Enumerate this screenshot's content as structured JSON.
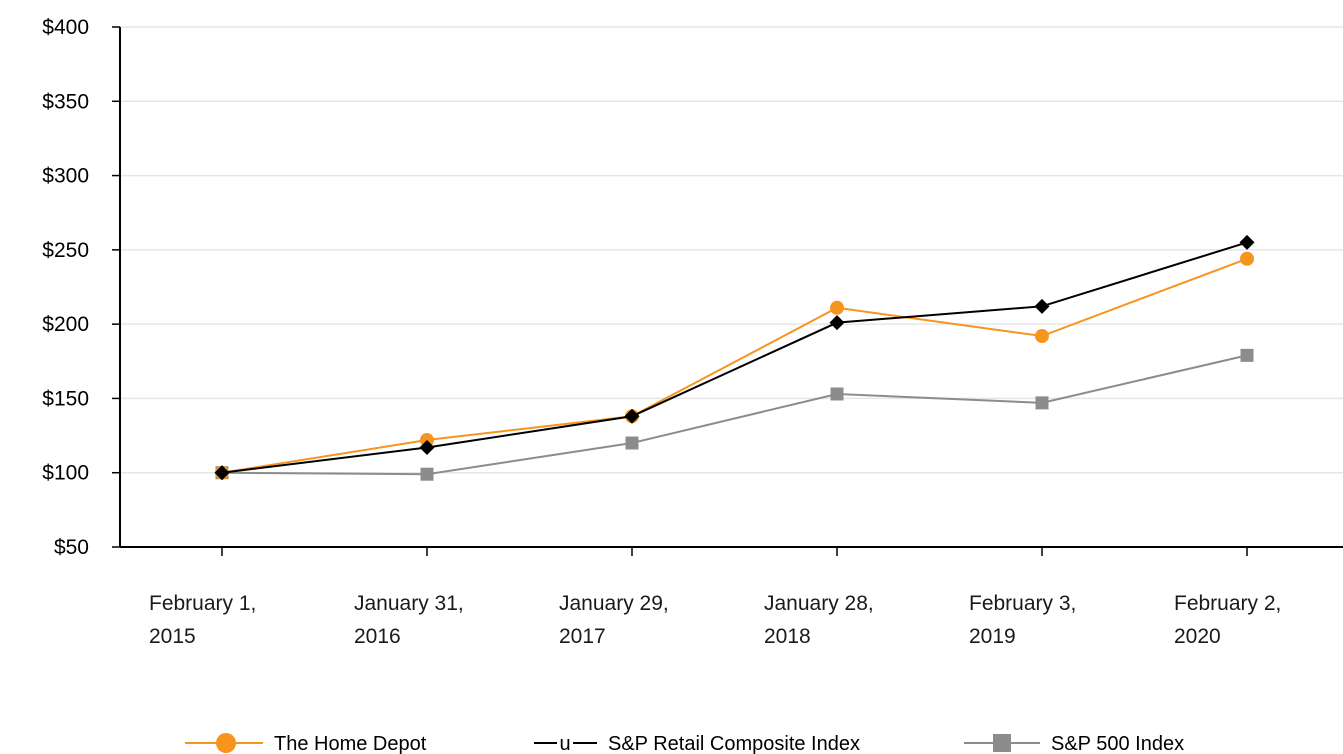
{
  "chart_data": {
    "type": "line",
    "x": [
      [
        "February 1,",
        "2015"
      ],
      [
        "January 31,",
        "2016"
      ],
      [
        "January 29,",
        "2017"
      ],
      [
        "January 28,",
        "2018"
      ],
      [
        "February 3,",
        "2019"
      ],
      [
        "February 2,",
        "2020"
      ]
    ],
    "ylim": [
      50,
      400
    ],
    "yticks": [
      "$50",
      "$100",
      "$150",
      "$200",
      "$250",
      "$300",
      "$350",
      "$400"
    ],
    "yticks_values": [
      50,
      100,
      150,
      200,
      250,
      300,
      350,
      400
    ],
    "grid": true,
    "legend_position": "bottom",
    "series": [
      {
        "name": "The Home Depot",
        "values": [
          100,
          122,
          138,
          211,
          192,
          244
        ],
        "color": "#F7941D",
        "marker": "circle",
        "legend_glyph": ""
      },
      {
        "name": "S&P Retail Composite Index",
        "values": [
          100,
          117,
          138,
          201,
          212,
          255
        ],
        "color": "#000000",
        "marker": "diamond",
        "legend_glyph": "u"
      },
      {
        "name": "S&P 500 Index",
        "values": [
          100,
          99,
          120,
          153,
          147,
          179
        ],
        "color": "#8C8C8C",
        "marker": "square",
        "legend_glyph": ""
      }
    ]
  }
}
